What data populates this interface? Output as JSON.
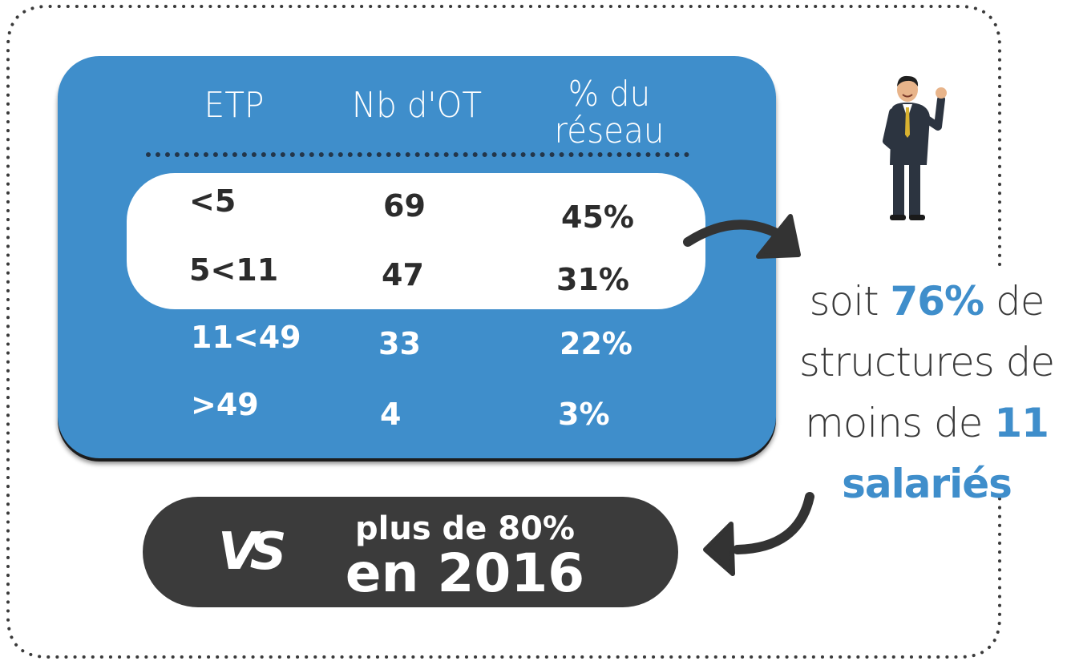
{
  "table": {
    "headers": [
      "ETP",
      "Nb d'OT",
      "% du réseau"
    ],
    "header_lines": {
      "pct_line1": "% du",
      "pct_line2": "réseau"
    },
    "rows": [
      {
        "etp": "<5",
        "nb": "69",
        "pct": "45%"
      },
      {
        "etp": "5<11",
        "nb": "47",
        "pct": "31%"
      },
      {
        "etp": "11<49",
        "nb": "33",
        "pct": "22%"
      },
      {
        "etp": ">49",
        "nb": "4",
        "pct": "3%"
      }
    ]
  },
  "summary": {
    "prefix": "soit ",
    "highlight_pct": "76%",
    "mid": " de structures de moins de ",
    "highlight_count": "11 salariés"
  },
  "comparison": {
    "vs": "VS",
    "line1": "plus de 80%",
    "line2": "en 2016"
  },
  "colors": {
    "accent": "#3f8ecb",
    "dark": "#3b3b3b",
    "text": "#3a3a3a",
    "dots": "#23364a"
  },
  "icons": {
    "mascot": "businessman-waving-icon",
    "arrow1": "curved-arrow-right-icon",
    "arrow2": "curved-arrow-left-icon"
  }
}
